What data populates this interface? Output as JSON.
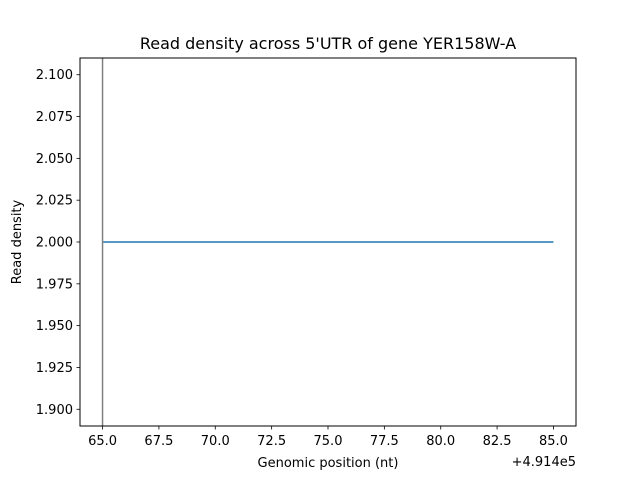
{
  "chart_data": {
    "type": "line",
    "title": "Read density across 5'UTR of gene YER158W-A",
    "xlabel": "Genomic position (nt)",
    "ylabel": "Read density",
    "x_offset_label": "+4.914e5",
    "xlim": [
      64.0,
      86.0
    ],
    "ylim": [
      1.89,
      2.11
    ],
    "xticks": [
      65.0,
      67.5,
      70.0,
      72.5,
      75.0,
      77.5,
      80.0,
      82.5,
      85.0
    ],
    "xtick_labels": [
      "65.0",
      "67.5",
      "70.0",
      "72.5",
      "75.0",
      "77.5",
      "80.0",
      "82.5",
      "85.0"
    ],
    "yticks": [
      1.9,
      1.925,
      1.95,
      1.975,
      2.0,
      2.025,
      2.05,
      2.075,
      2.1
    ],
    "ytick_labels": [
      "1.900",
      "1.925",
      "1.950",
      "1.975",
      "2.000",
      "2.025",
      "2.050",
      "2.075",
      "2.100"
    ],
    "grid": false,
    "series": [
      {
        "color": "#1f77b4",
        "x": [
          65,
          66,
          67,
          68,
          69,
          70,
          71,
          72,
          73,
          74,
          75,
          76,
          77,
          78,
          79,
          80,
          81,
          82,
          83,
          84,
          85
        ],
        "values": [
          2,
          2,
          2,
          2,
          2,
          2,
          2,
          2,
          2,
          2,
          2,
          2,
          2,
          2,
          2,
          2,
          2,
          2,
          2,
          2,
          2
        ]
      }
    ],
    "vlines": [
      {
        "x": 65,
        "color": "#808080"
      }
    ]
  }
}
